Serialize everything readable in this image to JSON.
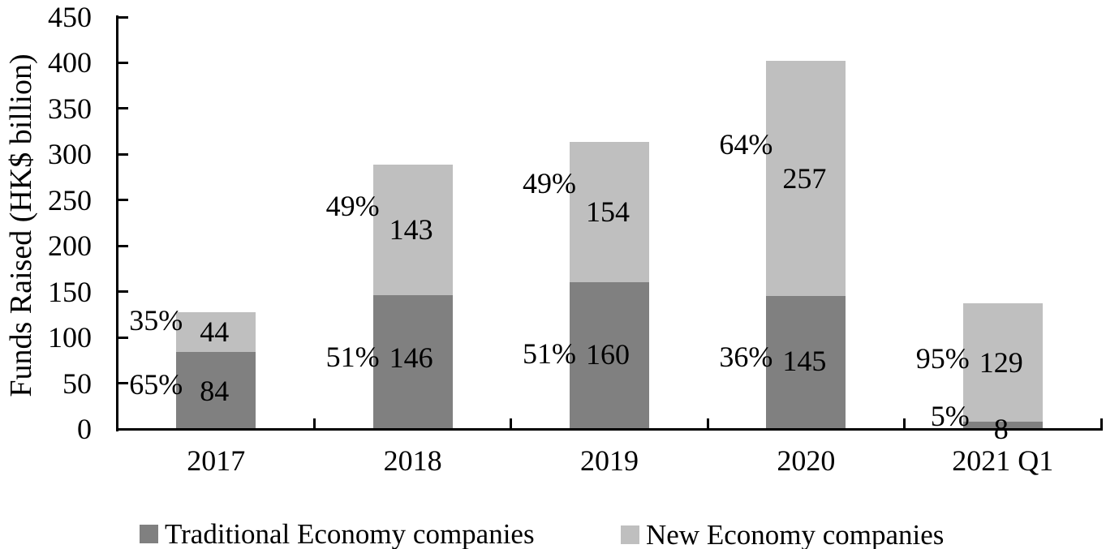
{
  "chart_data": {
    "type": "bar",
    "stacked": true,
    "title": "",
    "xlabel": "",
    "ylabel": "Funds Raised (HK$ billion)",
    "ylim": [
      0,
      450
    ],
    "ytick_step": 50,
    "yticks": [
      "0",
      "50",
      "100",
      "150",
      "200",
      "250",
      "300",
      "350",
      "400",
      "450"
    ],
    "categories": [
      "2017",
      "2018",
      "2019",
      "2020",
      "2021 Q1"
    ],
    "series": [
      {
        "name": "Traditional Economy companies",
        "color": "#808080",
        "values": [
          84,
          146,
          160,
          145,
          8
        ],
        "pct_labels": [
          "65%",
          "51%",
          "51%",
          "36%",
          "5%"
        ]
      },
      {
        "name": "New Economy companies",
        "color": "#bfbfbf",
        "values": [
          44,
          143,
          154,
          257,
          129
        ],
        "pct_labels": [
          "35%",
          "49%",
          "49%",
          "64%",
          "95%"
        ]
      }
    ],
    "totals": [
      128,
      289,
      314,
      402,
      137
    ],
    "grid": false,
    "legend_position": "bottom"
  }
}
